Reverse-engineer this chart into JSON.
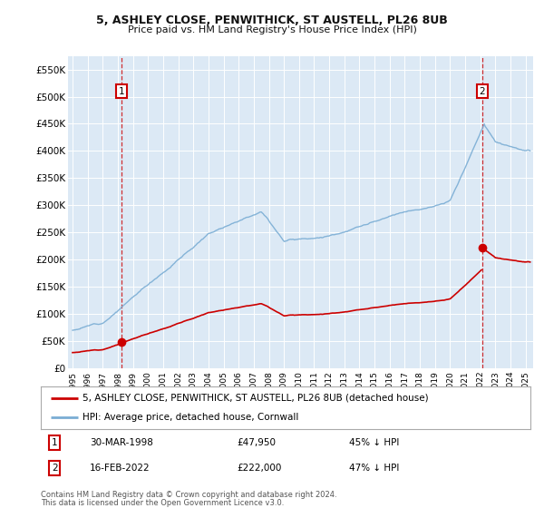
{
  "title1": "5, ASHLEY CLOSE, PENWITHICK, ST AUSTELL, PL26 8UB",
  "title2": "Price paid vs. HM Land Registry's House Price Index (HPI)",
  "ylabel_ticks": [
    "£0",
    "£50K",
    "£100K",
    "£150K",
    "£200K",
    "£250K",
    "£300K",
    "£350K",
    "£400K",
    "£450K",
    "£500K",
    "£550K"
  ],
  "ytick_vals": [
    0,
    50000,
    100000,
    150000,
    200000,
    250000,
    300000,
    350000,
    400000,
    450000,
    500000,
    550000
  ],
  "ylim": [
    0,
    575000
  ],
  "xlim_start": 1994.7,
  "xlim_end": 2025.5,
  "background_color": "#dce9f5",
  "hpi_color": "#7aadd4",
  "price_color": "#cc0000",
  "marker1_year": 1998.25,
  "marker1_price": 47950,
  "marker2_year": 2022.12,
  "marker2_price": 222000,
  "legend_line1": "5, ASHLEY CLOSE, PENWITHICK, ST AUSTELL, PL26 8UB (detached house)",
  "legend_line2": "HPI: Average price, detached house, Cornwall",
  "marker1_date": "30-MAR-1998",
  "marker1_value": "£47,950",
  "marker1_note": "45% ↓ HPI",
  "marker2_date": "16-FEB-2022",
  "marker2_value": "£222,000",
  "marker2_note": "47% ↓ HPI",
  "footer1": "Contains HM Land Registry data © Crown copyright and database right 2024.",
  "footer2": "This data is licensed under the Open Government Licence v3.0.",
  "xtick_years": [
    1995,
    1996,
    1997,
    1998,
    1999,
    2000,
    2001,
    2002,
    2003,
    2004,
    2005,
    2006,
    2007,
    2008,
    2009,
    2010,
    2011,
    2012,
    2013,
    2014,
    2015,
    2016,
    2017,
    2018,
    2019,
    2020,
    2021,
    2022,
    2023,
    2024,
    2025
  ]
}
